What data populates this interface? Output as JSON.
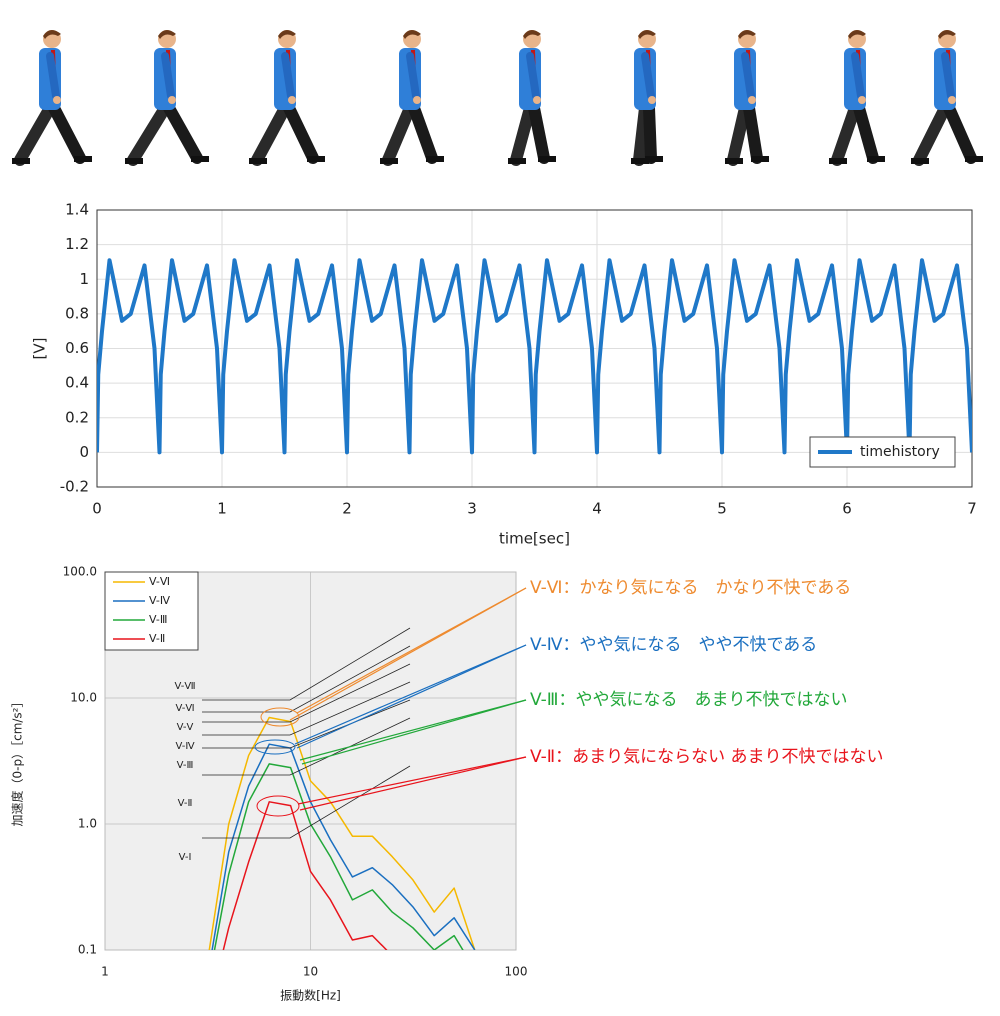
{
  "chart_data": [
    {
      "type": "line",
      "xlabel": "time[sec]",
      "ylabel": "[V]",
      "x": [
        0,
        0.01,
        0.04,
        0.1,
        0.2,
        0.27,
        0.38,
        0.46,
        0.5,
        0.51,
        0.54,
        0.6,
        0.7,
        0.77,
        0.88,
        0.96,
        1,
        1.01,
        1.04,
        1.1,
        1.2,
        1.27,
        1.38,
        1.46,
        1.5,
        1.51,
        1.54,
        1.6,
        1.7,
        1.77,
        1.88,
        1.96,
        2,
        2.01,
        2.04,
        2.1,
        2.2,
        2.27,
        2.38,
        2.46,
        2.5,
        2.51,
        2.54,
        2.6,
        2.7,
        2.77,
        2.88,
        2.96,
        3,
        3.01,
        3.04,
        3.1,
        3.2,
        3.27,
        3.38,
        3.46,
        3.5,
        3.51,
        3.54,
        3.6,
        3.7,
        3.77,
        3.88,
        3.96,
        4,
        4.01,
        4.04,
        4.1,
        4.2,
        4.27,
        4.38,
        4.46,
        4.5,
        4.51,
        4.54,
        4.6,
        4.7,
        4.77,
        4.88,
        4.96,
        5,
        5.01,
        5.04,
        5.1,
        5.2,
        5.27,
        5.38,
        5.46,
        5.5,
        5.51,
        5.54,
        5.6,
        5.7,
        5.77,
        5.88,
        5.96,
        6,
        6.01,
        6.04,
        6.1,
        6.2,
        6.27,
        6.38,
        6.46,
        6.5,
        6.51,
        6.54,
        6.6,
        6.7,
        6.77,
        6.88,
        6.96,
        7
      ],
      "series": [
        {
          "name": "timehistory",
          "color": "#1f78c8",
          "values": [
            0,
            0.45,
            0.7,
            1.11,
            0.76,
            0.8,
            1.08,
            0.6,
            0,
            0.45,
            0.7,
            1.11,
            0.76,
            0.8,
            1.08,
            0.6,
            0,
            0.45,
            0.7,
            1.11,
            0.76,
            0.8,
            1.08,
            0.6,
            0,
            0.45,
            0.7,
            1.11,
            0.76,
            0.8,
            1.08,
            0.6,
            0,
            0.45,
            0.7,
            1.11,
            0.76,
            0.8,
            1.08,
            0.6,
            0,
            0.45,
            0.7,
            1.11,
            0.76,
            0.8,
            1.08,
            0.6,
            0,
            0.45,
            0.7,
            1.11,
            0.76,
            0.8,
            1.08,
            0.6,
            0,
            0.45,
            0.7,
            1.11,
            0.76,
            0.8,
            1.08,
            0.6,
            0,
            0.45,
            0.7,
            1.11,
            0.76,
            0.8,
            1.08,
            0.6,
            0,
            0.45,
            0.7,
            1.11,
            0.76,
            0.8,
            1.08,
            0.6,
            0,
            0.45,
            0.7,
            1.11,
            0.76,
            0.8,
            1.08,
            0.6,
            0,
            0.45,
            0.7,
            1.11,
            0.76,
            0.8,
            1.08,
            0.6,
            0,
            0.45,
            0.7,
            1.11,
            0.76,
            0.8,
            1.08,
            0.6,
            0,
            0.45,
            0.7,
            1.11,
            0.76,
            0.8,
            1.08,
            0.6,
            0
          ]
        }
      ],
      "xlim": [
        0,
        7
      ],
      "ylim": [
        -0.2,
        1.4
      ],
      "xticks": [
        0,
        1,
        2,
        3,
        4,
        5,
        6,
        7
      ],
      "yticks": [
        -0.2,
        0,
        0.2,
        0.4,
        0.6,
        0.8,
        1,
        1.2,
        1.4
      ],
      "grid": true,
      "legend": "lower right"
    },
    {
      "type": "line",
      "xlabel": "振動数[Hz]",
      "ylabel": "加速度（0-p）［cm/s²］",
      "x": [
        3.15,
        4,
        5,
        6.3,
        8,
        10,
        12.5,
        16,
        20,
        25,
        31.5,
        40,
        50,
        63
      ],
      "series": [
        {
          "name": "V-Ⅵ",
          "color": "#f5b800",
          "values": [
            0.08,
            1.0,
            3.5,
            7,
            6.5,
            2.2,
            1.5,
            0.8,
            0.8,
            0.55,
            0.36,
            0.2,
            0.31,
            0.1
          ]
        },
        {
          "name": "V-Ⅳ",
          "color": "#1a6fc0",
          "values": [
            0.06,
            0.6,
            2.0,
            4.3,
            4.0,
            1.5,
            0.75,
            0.38,
            0.45,
            0.33,
            0.22,
            0.13,
            0.18,
            0.1
          ]
        },
        {
          "name": "V-Ⅲ",
          "color": "#22a83a",
          "values": [
            0.05,
            0.4,
            1.5,
            3.0,
            2.8,
            1.0,
            0.55,
            0.25,
            0.3,
            0.2,
            0.15,
            0.1,
            0.13,
            0.07
          ]
        },
        {
          "name": "V-Ⅱ",
          "color": "#e8141c",
          "values": [
            0.03,
            0.15,
            0.5,
            1.5,
            1.4,
            0.42,
            0.25,
            0.12,
            0.13,
            0.09,
            null,
            null,
            null,
            null
          ]
        }
      ],
      "xlim": [
        1,
        100
      ],
      "ylim": [
        0.1,
        100
      ],
      "xticks": [
        1,
        10,
        100
      ],
      "yticks": [
        0.1,
        {
          "value": 1,
          "label": "1.0"
        },
        {
          "value": 10,
          "label": "10.0"
        },
        {
          "value": 100,
          "label": "100.0"
        }
      ],
      "log_x": true,
      "log_y": true,
      "grid": true,
      "legend": "upper left",
      "level_labels": [
        "V-Ⅶ",
        "V-Ⅵ",
        "V-Ⅴ",
        "V-Ⅳ",
        "V-Ⅲ",
        "V-Ⅱ",
        "V-Ⅰ"
      ],
      "annotations": [
        {
          "text": "V-Ⅵ：かなり気になる　かなり不快である",
          "color": "#ee8a2e"
        },
        {
          "text": "V-Ⅳ：やや気になる　やや不快である",
          "color": "#1a6fc0"
        },
        {
          "text": "V-Ⅲ：やや気になる　あまり不快ではない",
          "color": "#22a83a"
        },
        {
          "text": "V-Ⅱ：あまり気にならない あまり不快ではない",
          "color": "#e8141c"
        }
      ]
    }
  ]
}
